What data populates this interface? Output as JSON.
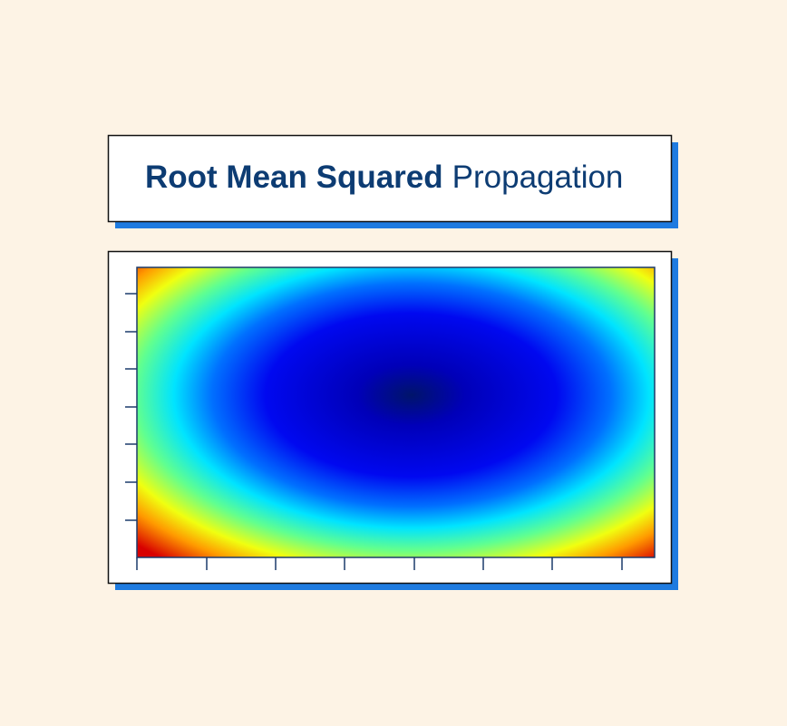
{
  "title": {
    "bold": "Root Mean Squared",
    "regular": "Propagation"
  }
}
